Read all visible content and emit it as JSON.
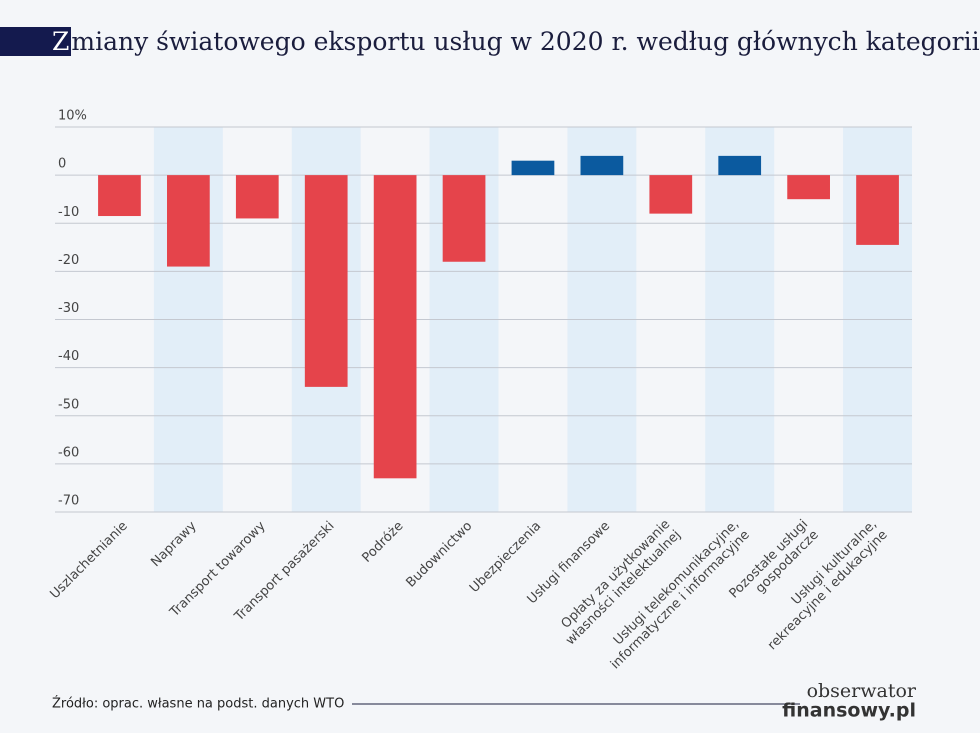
{
  "chart_data": {
    "type": "bar",
    "title": "Zmiany światowego eksportu usług w 2020 r. według głównych kategorii",
    "categories": [
      "Uszlachetnianie",
      "Naprawy",
      "Transport towarowy",
      "Transport pasażerski",
      "Podróże",
      "Budownictwo",
      "Ubezpieczenia",
      "Usługi finansowe",
      "Opłaty za użytkowanie\nwłasności intelektualnej",
      "Usługi telekomunikacyjne,\ninformatyczne i informacyjne",
      "Pozostałe usługi\ngospodarcze",
      "Usługi kulturalne,\nrekreacyjne i edukacyjne"
    ],
    "values": [
      -8.5,
      -19,
      -9,
      -44,
      -63,
      -18,
      3,
      4,
      -8,
      4,
      -5,
      -14.5
    ],
    "colors": {
      "positive": "#0b5a9f",
      "negative": "#e5444b"
    },
    "band_color": "#e2eef8",
    "ylim": [
      -70,
      10
    ],
    "yticks": [
      {
        "value": 10,
        "label": "10%"
      },
      0,
      -10,
      -20,
      -30,
      -40,
      -50,
      -60,
      -70
    ],
    "grid": true
  },
  "source": "Źródło: oprac. własne na podst. danych WTO",
  "logo": [
    "obserwator",
    "finansowy.pl"
  ]
}
